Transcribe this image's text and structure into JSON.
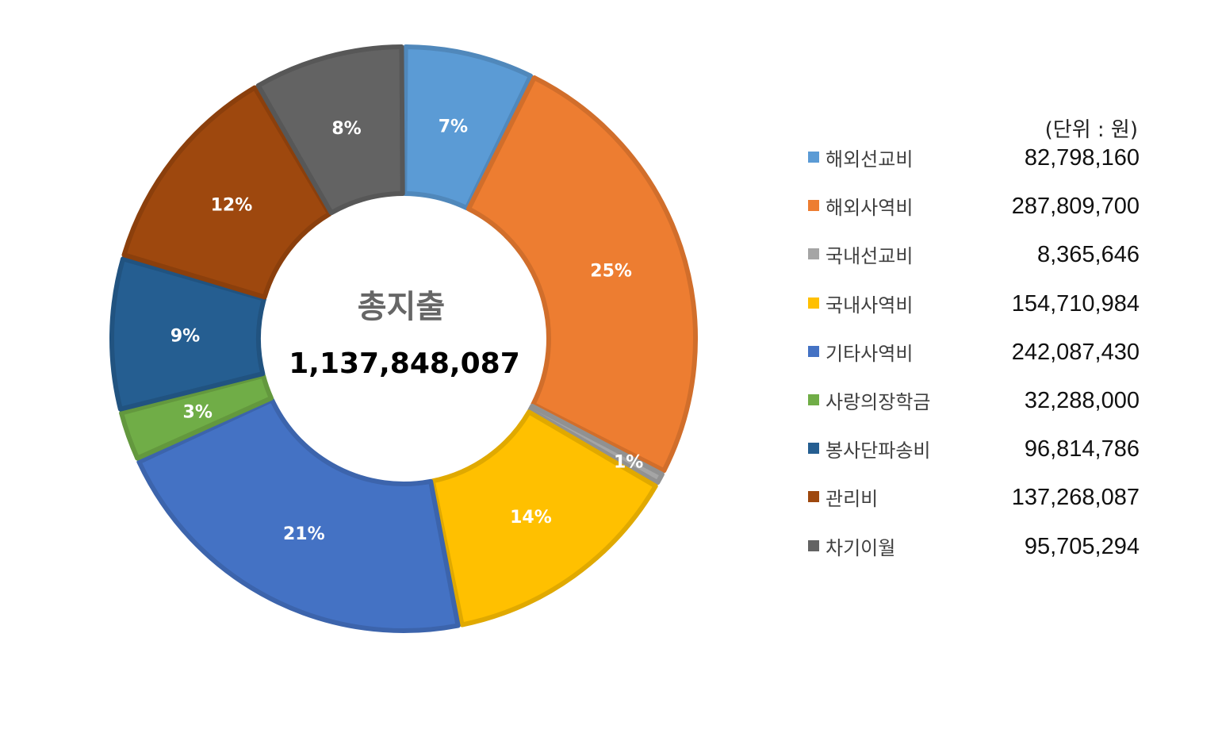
{
  "chart_data": {
    "type": "pie",
    "donut": true,
    "unit_label": "(단위 : 원)",
    "center": {
      "title": "총지출",
      "total": "1,137,848,087"
    },
    "categories": [
      "해외선교비",
      "해외사역비",
      "국내선교비",
      "국내사역비",
      "기타사역비",
      "사랑의장학금",
      "봉사단파송비",
      "관리비",
      "차기이월"
    ],
    "values": [
      82798160,
      287809700,
      8365646,
      154710984,
      242087430,
      32288000,
      96814786,
      137268087,
      95705294
    ],
    "value_labels": [
      "82,798,160",
      "287,809,700",
      "8,365,646",
      "154,710,984",
      "242,087,430",
      "32,288,000",
      "96,814,786",
      "137,268,087",
      "95,705,294"
    ],
    "percent_labels": [
      "7%",
      "25%",
      "1%",
      "14%",
      "21%",
      "3%",
      "9%",
      "12%",
      "8%"
    ],
    "colors": [
      "#5B9BD5",
      "#ED7D31",
      "#A5A5A5",
      "#FFC000",
      "#4472C4",
      "#70AD47",
      "#255E91",
      "#9E480E",
      "#636363"
    ],
    "legend_position": "right"
  }
}
